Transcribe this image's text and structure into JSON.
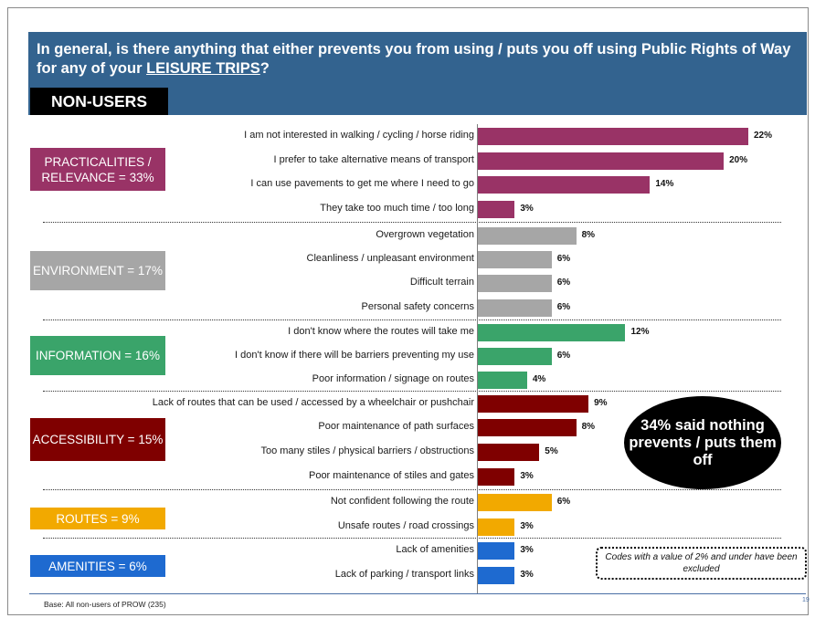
{
  "title": {
    "part1": "In general, is there anything that either prevents you from using / puts you off using Public Rights of Way for any of your ",
    "emph": "LEISURE TRIPS",
    "part2": "?"
  },
  "badge": "NON-USERS",
  "categories": [
    {
      "label": "PRACTICALITIES / RELEVANCE = 33%",
      "color": "#993366"
    },
    {
      "label": "ENVIRONMENT = 17%",
      "color": "#a6a6a6"
    },
    {
      "label": "INFORMATION = 16%",
      "color": "#3aa46a"
    },
    {
      "label": "ACCESSIBILITY = 15%",
      "color": "#7f0000"
    },
    {
      "label": "ROUTES = 9%",
      "color": "#f2a900"
    },
    {
      "label": "AMENITIES = 6%",
      "color": "#1e6ad0"
    }
  ],
  "chart_data": {
    "type": "bar",
    "orientation": "horizontal",
    "unit": "%",
    "categories": [
      "I am not interested in walking / cycling / horse riding",
      "I prefer to take alternative means of transport",
      "I can use pavements to get me where I need to go",
      "They take too much time / too long",
      "Overgrown vegetation",
      "Cleanliness / unpleasant environment",
      "Difficult terrain",
      "Personal safety concerns",
      "I don't know where the routes will take me",
      "I don't know if there will be barriers preventing my use",
      "Poor information / signage on routes",
      "Lack of routes that can be used / accessed by a wheelchair or pushchair",
      "Poor maintenance of path surfaces",
      "Too many stiles / physical barriers / obstructions",
      "Poor maintenance of stiles and gates",
      "Not confident following the route",
      "Unsafe routes / road crossings",
      "Lack of amenities",
      "Lack of parking / transport links"
    ],
    "values": [
      22,
      20,
      14,
      3,
      8,
      6,
      6,
      6,
      12,
      6,
      4,
      9,
      8,
      5,
      3,
      6,
      3,
      3,
      3
    ],
    "value_labels": [
      "22%",
      "20%",
      "14%",
      "3%",
      "8%",
      "6%",
      "6%",
      "6%",
      "12%",
      "6%",
      "4%",
      "9%",
      "8%",
      "5%",
      "3%",
      "6%",
      "3%",
      "3%",
      "3%"
    ],
    "group": [
      0,
      0,
      0,
      0,
      1,
      1,
      1,
      1,
      2,
      2,
      2,
      3,
      3,
      3,
      3,
      4,
      4,
      5,
      5
    ]
  },
  "callout": "34% said nothing prevents / puts them off",
  "note": "Codes with a value of 2% and under have been excluded",
  "base": "Base: All non-users of PROW (235)",
  "page_number": "19"
}
